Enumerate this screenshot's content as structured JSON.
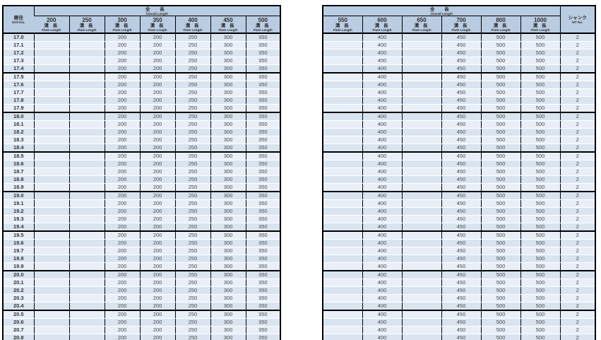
{
  "colors": {
    "header_bg": "#b9cce2",
    "row_odd": "#d9e4f0",
    "row_even": "#e9eff8",
    "border": "#000000",
    "value_text": "#474747"
  },
  "left_table": {
    "dia_header": {
      "jp": "錐径",
      "en": "Drill Dia."
    },
    "overall_header": {
      "jp": "全 長",
      "en": "Overall Length"
    },
    "flute_header": {
      "jp": "溝 長",
      "en": "Flute Length"
    },
    "columns": [
      "200",
      "250",
      "300",
      "350",
      "400",
      "450",
      "500"
    ],
    "rows": [
      [
        "17.0",
        "",
        "",
        "200",
        "200",
        "250",
        "300",
        "350"
      ],
      [
        "17.1",
        "",
        "",
        "200",
        "200",
        "250",
        "300",
        "350"
      ],
      [
        "17.2",
        "",
        "",
        "200",
        "200",
        "250",
        "300",
        "350"
      ],
      [
        "17.3",
        "",
        "",
        "200",
        "200",
        "250",
        "300",
        "350"
      ],
      [
        "17.4",
        "",
        "",
        "200",
        "200",
        "250",
        "300",
        "350"
      ],
      [
        "17.5",
        "",
        "",
        "200",
        "200",
        "250",
        "300",
        "350"
      ],
      [
        "17.6",
        "",
        "",
        "200",
        "200",
        "250",
        "300",
        "350"
      ],
      [
        "17.7",
        "",
        "",
        "200",
        "200",
        "250",
        "300",
        "350"
      ],
      [
        "17.8",
        "",
        "",
        "200",
        "200",
        "250",
        "300",
        "350"
      ],
      [
        "17.9",
        "",
        "",
        "200",
        "200",
        "250",
        "300",
        "350"
      ],
      [
        "18.0",
        "",
        "",
        "200",
        "200",
        "250",
        "300",
        "350"
      ],
      [
        "18.1",
        "",
        "",
        "200",
        "200",
        "250",
        "300",
        "350"
      ],
      [
        "18.2",
        "",
        "",
        "200",
        "200",
        "250",
        "300",
        "350"
      ],
      [
        "18.3",
        "",
        "",
        "200",
        "200",
        "250",
        "300",
        "350"
      ],
      [
        "18.4",
        "",
        "",
        "200",
        "200",
        "250",
        "300",
        "350"
      ],
      [
        "18.5",
        "",
        "",
        "200",
        "200",
        "250",
        "300",
        "350"
      ],
      [
        "18.6",
        "",
        "",
        "200",
        "200",
        "250",
        "300",
        "350"
      ],
      [
        "18.7",
        "",
        "",
        "200",
        "200",
        "250",
        "300",
        "350"
      ],
      [
        "18.8",
        "",
        "",
        "200",
        "200",
        "250",
        "300",
        "350"
      ],
      [
        "18.9",
        "",
        "",
        "200",
        "200",
        "250",
        "300",
        "350"
      ],
      [
        "19.0",
        "",
        "",
        "200",
        "200",
        "250",
        "300",
        "350"
      ],
      [
        "19.1",
        "",
        "",
        "200",
        "200",
        "250",
        "300",
        "350"
      ],
      [
        "19.2",
        "",
        "",
        "200",
        "200",
        "250",
        "300",
        "350"
      ],
      [
        "19.3",
        "",
        "",
        "200",
        "200",
        "250",
        "300",
        "350"
      ],
      [
        "19.4",
        "",
        "",
        "200",
        "200",
        "250",
        "300",
        "350"
      ],
      [
        "19.5",
        "",
        "",
        "200",
        "200",
        "250",
        "300",
        "350"
      ],
      [
        "19.6",
        "",
        "",
        "200",
        "200",
        "250",
        "300",
        "350"
      ],
      [
        "19.7",
        "",
        "",
        "200",
        "200",
        "250",
        "300",
        "350"
      ],
      [
        "19.8",
        "",
        "",
        "200",
        "200",
        "250",
        "300",
        "350"
      ],
      [
        "19.9",
        "",
        "",
        "200",
        "200",
        "250",
        "300",
        "350"
      ],
      [
        "20.0",
        "",
        "",
        "200",
        "200",
        "250",
        "300",
        "350"
      ],
      [
        "20.1",
        "",
        "",
        "200",
        "200",
        "250",
        "300",
        "350"
      ],
      [
        "20.2",
        "",
        "",
        "200",
        "200",
        "250",
        "300",
        "350"
      ],
      [
        "20.3",
        "",
        "",
        "200",
        "200",
        "250",
        "300",
        "350"
      ],
      [
        "20.4",
        "",
        "",
        "200",
        "200",
        "250",
        "300",
        "350"
      ],
      [
        "20.5",
        "",
        "",
        "200",
        "200",
        "250",
        "300",
        "350"
      ],
      [
        "20.6",
        "",
        "",
        "200",
        "200",
        "250",
        "300",
        "350"
      ],
      [
        "20.7",
        "",
        "",
        "200",
        "200",
        "250",
        "300",
        "350"
      ],
      [
        "20.8",
        "",
        "",
        "200",
        "200",
        "250",
        "300",
        "350"
      ],
      [
        "20.9",
        "",
        "",
        "200",
        "200",
        "250",
        "300",
        "350"
      ]
    ]
  },
  "right_table": {
    "overall_header": {
      "jp": "全 長",
      "en": "Overall Length"
    },
    "flute_header": {
      "jp": "溝 長",
      "en": "Flute Length"
    },
    "shank_header": {
      "jp": "シャンク",
      "en": "MT No."
    },
    "columns": [
      "550",
      "600",
      "650",
      "700",
      "800",
      "1000"
    ],
    "rows": [
      [
        "",
        "400",
        "",
        "450",
        "500",
        "500",
        "2"
      ],
      [
        "",
        "400",
        "",
        "450",
        "500",
        "500",
        "2"
      ],
      [
        "",
        "400",
        "",
        "450",
        "500",
        "500",
        "2"
      ],
      [
        "",
        "400",
        "",
        "450",
        "500",
        "500",
        "2"
      ],
      [
        "",
        "400",
        "",
        "450",
        "500",
        "500",
        "2"
      ],
      [
        "",
        "400",
        "",
        "450",
        "500",
        "500",
        "2"
      ],
      [
        "",
        "400",
        "",
        "450",
        "500",
        "500",
        "2"
      ],
      [
        "",
        "400",
        "",
        "450",
        "500",
        "500",
        "2"
      ],
      [
        "",
        "400",
        "",
        "450",
        "500",
        "500",
        "2"
      ],
      [
        "",
        "400",
        "",
        "450",
        "500",
        "500",
        "2"
      ],
      [
        "",
        "400",
        "",
        "450",
        "500",
        "500",
        "2"
      ],
      [
        "",
        "400",
        "",
        "450",
        "500",
        "500",
        "2"
      ],
      [
        "",
        "400",
        "",
        "450",
        "500",
        "500",
        "2"
      ],
      [
        "",
        "400",
        "",
        "450",
        "500",
        "500",
        "2"
      ],
      [
        "",
        "400",
        "",
        "450",
        "500",
        "500",
        "2"
      ],
      [
        "",
        "400",
        "",
        "450",
        "500",
        "500",
        "2"
      ],
      [
        "",
        "400",
        "",
        "450",
        "500",
        "500",
        "2"
      ],
      [
        "",
        "400",
        "",
        "450",
        "500",
        "500",
        "2"
      ],
      [
        "",
        "400",
        "",
        "450",
        "500",
        "500",
        "2"
      ],
      [
        "",
        "400",
        "",
        "450",
        "500",
        "500",
        "2"
      ],
      [
        "",
        "400",
        "",
        "450",
        "500",
        "500",
        "2"
      ],
      [
        "",
        "400",
        "",
        "450",
        "500",
        "500",
        "2"
      ],
      [
        "",
        "400",
        "",
        "450",
        "500",
        "500",
        "2"
      ],
      [
        "",
        "400",
        "",
        "450",
        "500",
        "500",
        "2"
      ],
      [
        "",
        "400",
        "",
        "450",
        "500",
        "500",
        "2"
      ],
      [
        "",
        "400",
        "",
        "450",
        "500",
        "500",
        "2"
      ],
      [
        "",
        "400",
        "",
        "450",
        "500",
        "500",
        "2"
      ],
      [
        "",
        "400",
        "",
        "450",
        "500",
        "500",
        "2"
      ],
      [
        "",
        "400",
        "",
        "450",
        "500",
        "500",
        "2"
      ],
      [
        "",
        "400",
        "",
        "450",
        "500",
        "500",
        "2"
      ],
      [
        "",
        "400",
        "",
        "450",
        "500",
        "500",
        "2"
      ],
      [
        "",
        "400",
        "",
        "450",
        "500",
        "500",
        "2"
      ],
      [
        "",
        "400",
        "",
        "450",
        "500",
        "500",
        "2"
      ],
      [
        "",
        "400",
        "",
        "450",
        "500",
        "500",
        "2"
      ],
      [
        "",
        "400",
        "",
        "450",
        "500",
        "500",
        "2"
      ],
      [
        "",
        "400",
        "",
        "450",
        "500",
        "500",
        "2"
      ],
      [
        "",
        "400",
        "",
        "450",
        "500",
        "500",
        "2"
      ],
      [
        "",
        "400",
        "",
        "450",
        "500",
        "500",
        "2"
      ],
      [
        "",
        "400",
        "",
        "450",
        "500",
        "500",
        "2"
      ],
      [
        "",
        "400",
        "",
        "450",
        "500",
        "500",
        "2"
      ]
    ]
  }
}
